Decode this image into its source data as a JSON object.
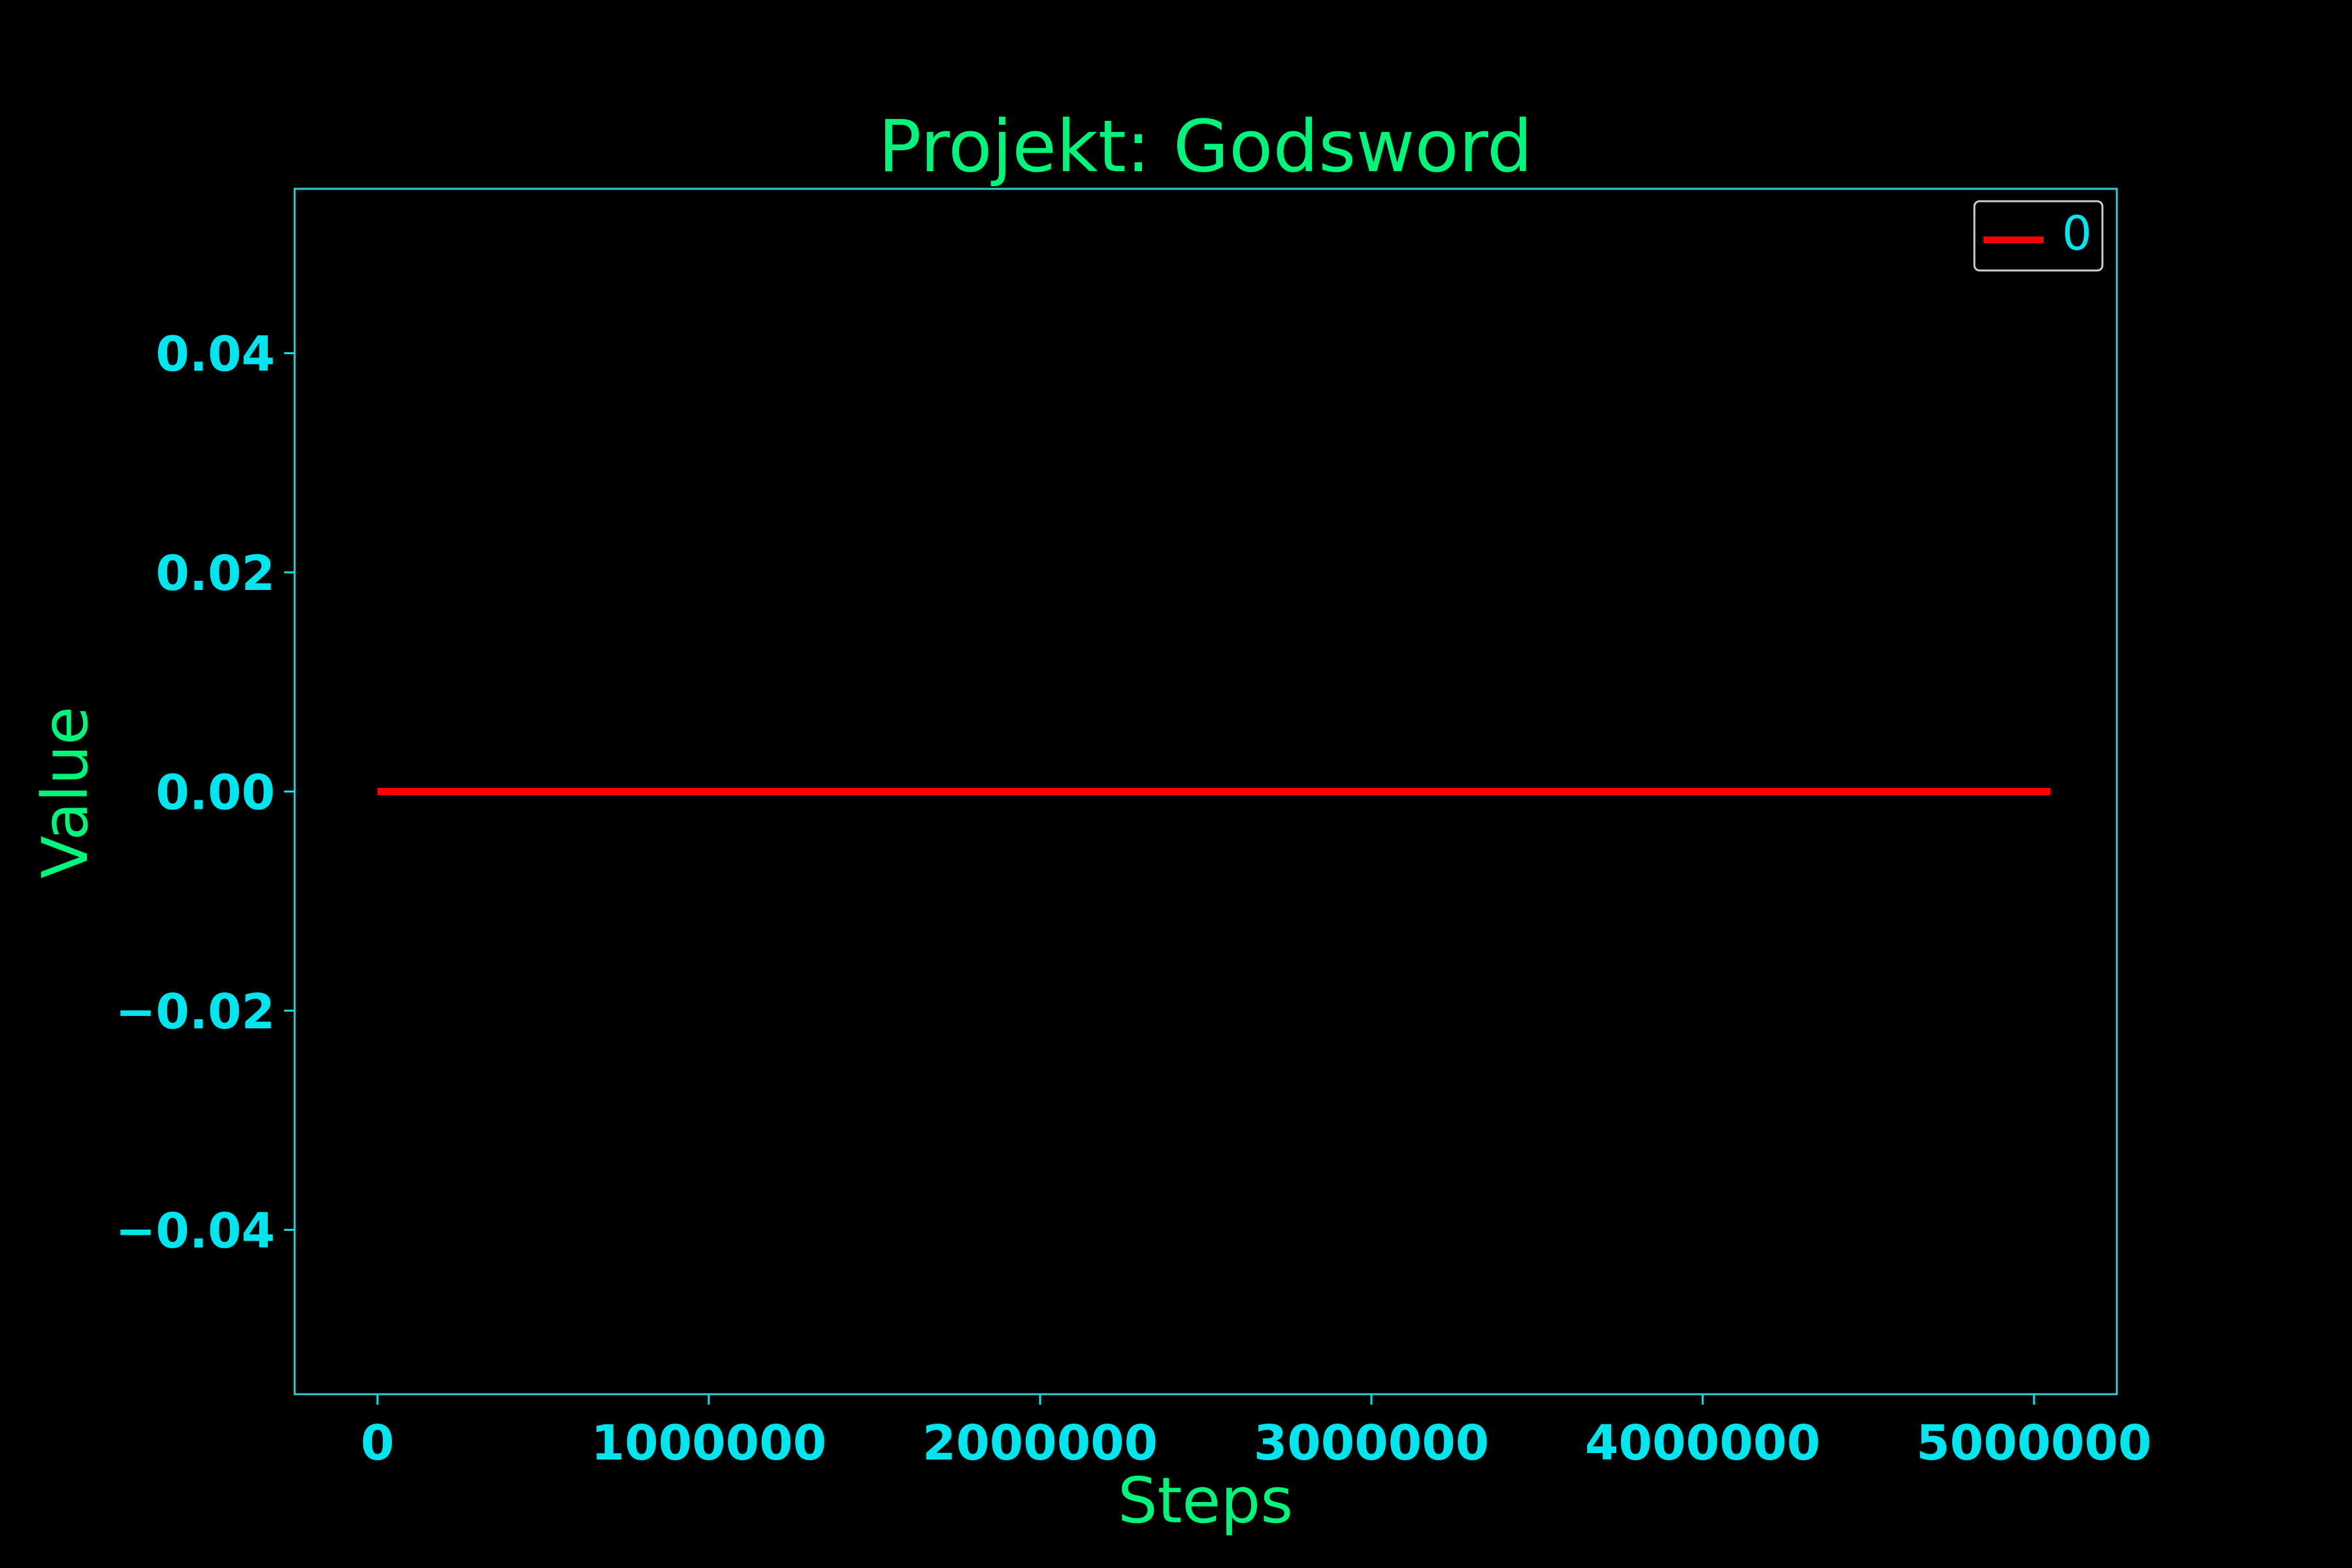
{
  "colors": {
    "background": "#000000",
    "title": "#00f57a",
    "axis_label": "#00f57a",
    "tick": "#00e5ee",
    "spine": "#33cccc",
    "series": "#ff0000",
    "legend_border": "#cccccc",
    "legend_text": "#00e5ee"
  },
  "chart_data": {
    "type": "line",
    "title": "Projekt: Godsword",
    "xlabel": "Steps",
    "ylabel": "Value",
    "xlim": [
      -250000,
      5250000
    ],
    "ylim": [
      -0.055,
      0.055
    ],
    "xticks": [
      0,
      1000000,
      2000000,
      3000000,
      4000000,
      5000000
    ],
    "xtick_labels": [
      "0",
      "1000000",
      "2000000",
      "3000000",
      "4000000",
      "5000000"
    ],
    "yticks": [
      0.04,
      0.02,
      0.0,
      -0.02,
      -0.04
    ],
    "ytick_labels": [
      "0.04",
      "0.02",
      "0.00",
      "−0.02",
      "−0.04"
    ],
    "grid": false,
    "legend_position": "top-right",
    "series": [
      {
        "name": "0",
        "color": "#ff0000",
        "x": [
          0,
          5050000
        ],
        "y": [
          0,
          0
        ]
      }
    ]
  }
}
